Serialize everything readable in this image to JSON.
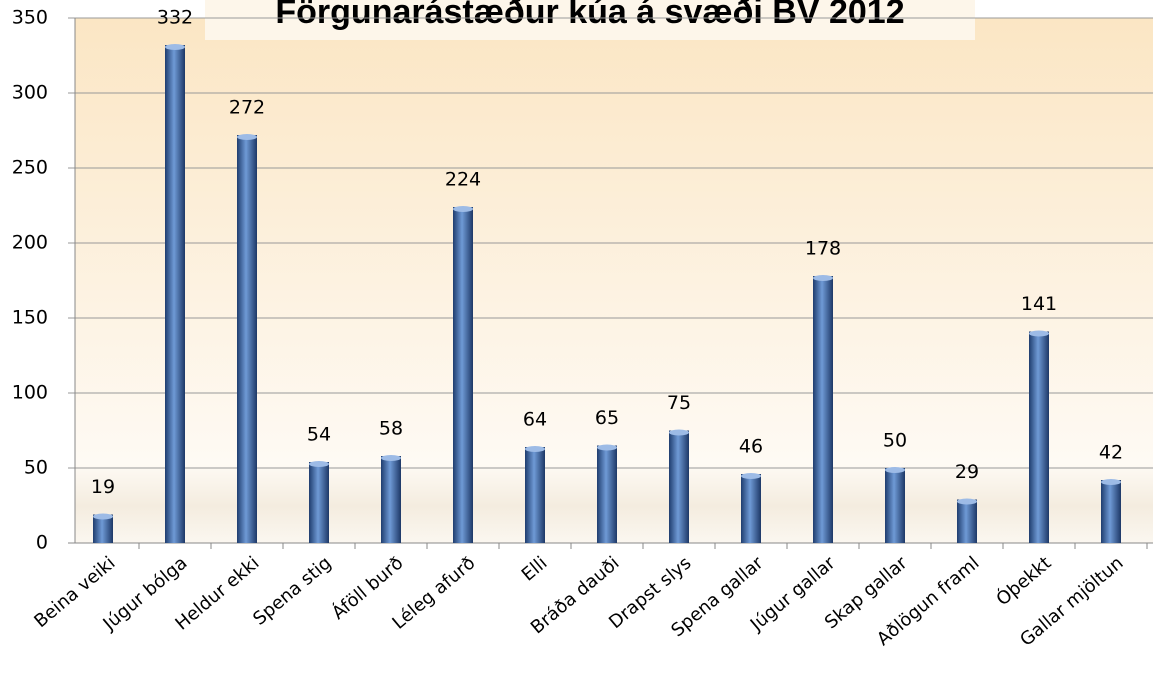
{
  "chart_data": {
    "type": "bar",
    "title": "Förgunarástæður kúa á svæði BV 2012",
    "categories": [
      "Beina veiki",
      "Júgur bólga",
      "Heldur ekki",
      "Spena stig",
      "Áföll burð",
      "Léleg afurð",
      "Elli",
      "Bráða dauði",
      "Drapst slys",
      "Spena gallar",
      "Júgur gallar",
      "Skap gallar",
      "Aðlögun framl",
      "Óþekkt",
      "Gallar mjöltun"
    ],
    "values": [
      19,
      332,
      272,
      54,
      58,
      224,
      64,
      65,
      75,
      46,
      178,
      50,
      29,
      141,
      42
    ],
    "color": "#3f6aa8",
    "ylim": [
      0,
      350
    ],
    "yticks": [
      0,
      50,
      100,
      150,
      200,
      250,
      300,
      350
    ],
    "grid": true
  }
}
